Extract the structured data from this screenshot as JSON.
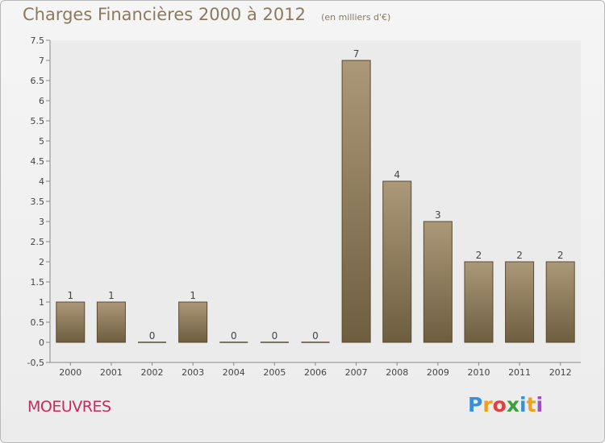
{
  "chart_data": {
    "type": "bar",
    "title": "Charges Financières 2000 à 2012",
    "subtitle": "(en milliers d'€)",
    "categories": [
      "2000",
      "2001",
      "2002",
      "2003",
      "2004",
      "2005",
      "2006",
      "2007",
      "2008",
      "2009",
      "2010",
      "2011",
      "2012"
    ],
    "values": [
      1,
      1,
      0,
      1,
      0,
      0,
      0,
      7,
      4,
      3,
      2,
      2,
      2
    ],
    "data_labels": [
      "1",
      "1",
      "0",
      "1",
      "0",
      "0",
      "0",
      "7",
      "4",
      "3",
      "2",
      "2",
      "2"
    ],
    "ylim": [
      -0.5,
      7.5
    ],
    "yticks": [
      "-0,5",
      "0",
      "0.5",
      "1",
      "1.5",
      "2",
      "2.5",
      "3",
      "3.5",
      "4",
      "4.5",
      "5",
      "5.5",
      "6",
      "6.5",
      "7",
      "7.5"
    ],
    "ytick_values": [
      -0.5,
      0,
      0.5,
      1,
      1.5,
      2,
      2.5,
      3,
      3.5,
      4,
      4.5,
      5,
      5.5,
      6,
      6.5,
      7,
      7.5
    ],
    "grid": false,
    "colors": {
      "bar_top": "#ab9878",
      "bar_bottom": "#6e5e40",
      "bar_edge": "#5a4a30",
      "text": "#444444"
    }
  },
  "commune": "MOEUVRES",
  "logo": {
    "letters": [
      "P",
      "r",
      "o",
      "x",
      "i",
      "t",
      "i"
    ],
    "colors": [
      "#3a8fd6",
      "#f0a020",
      "#e04040",
      "#3aa03a",
      "#3a8fd6",
      "#f0a020",
      "#9b4fc0"
    ]
  }
}
